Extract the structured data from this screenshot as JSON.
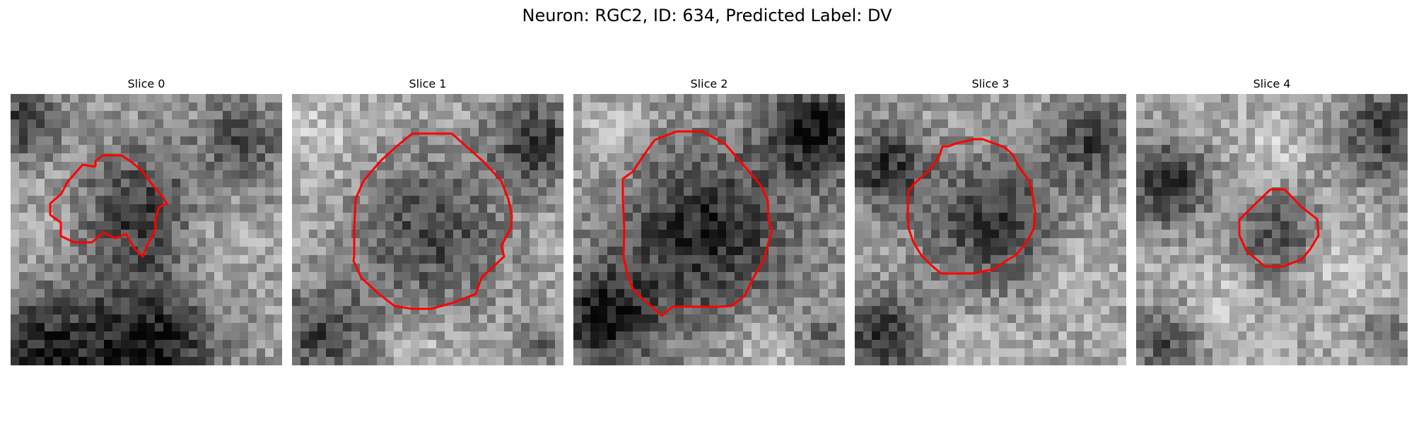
{
  "figure": {
    "title": "Neuron: RGC2, ID: 634, Predicted Label: DV"
  },
  "slices": [
    {
      "title": "Slice 0"
    },
    {
      "title": "Slice 1"
    },
    {
      "title": "Slice 2"
    },
    {
      "title": "Slice 3"
    },
    {
      "title": "Slice 4"
    }
  ],
  "colors": {
    "contour": "#ff0000",
    "background": "#ffffff"
  }
}
